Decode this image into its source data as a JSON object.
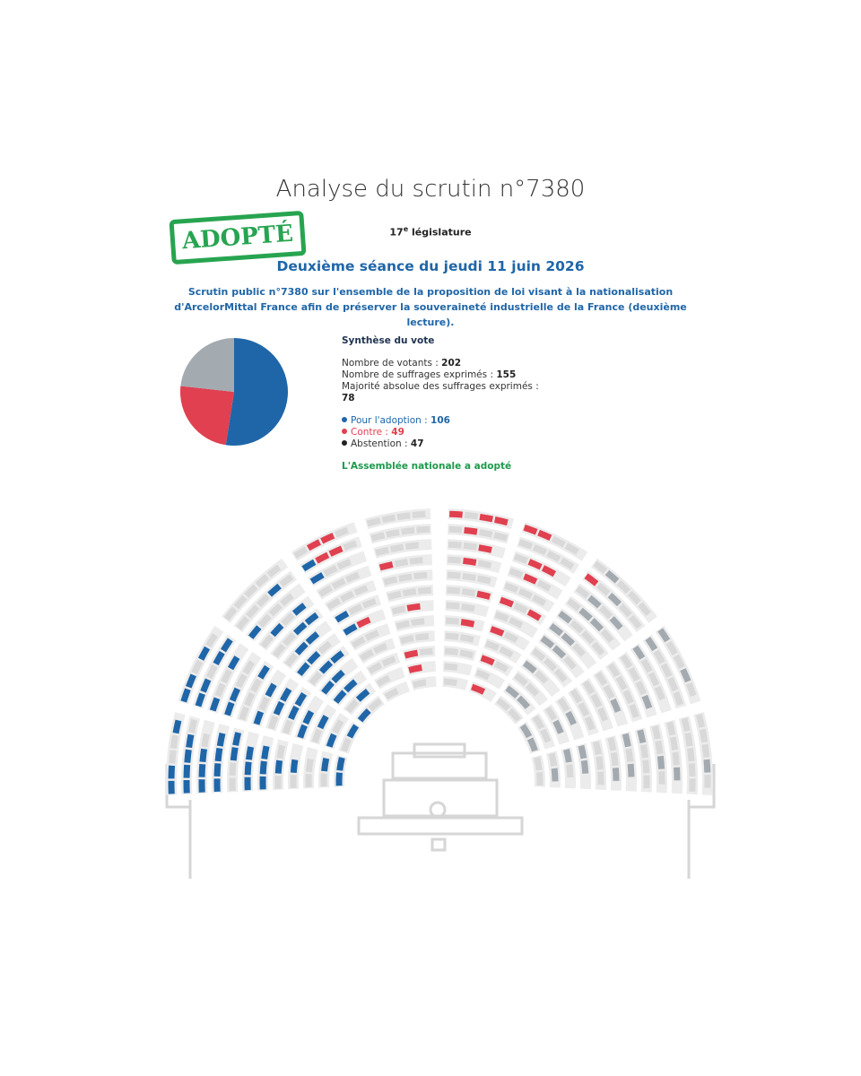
{
  "header": {
    "title": "Analyse du scrutin n°7380",
    "stamp": "ADOPTÉ",
    "legislature_number": "17",
    "legislature_suffix": "e",
    "legislature_label": "législature",
    "session": "Deuxième séance du jeudi 11 juin 2026",
    "description": "Scrutin public n°7380 sur l'ensemble de la proposition de loi visant à la nationalisation d'ArcelorMittal France afin de préserver la souveraineté industrielle de la France (deuxième lecture)."
  },
  "synthesis": {
    "title": "Synthèse du vote",
    "votants": {
      "label": "Nombre de votants :",
      "value": 202
    },
    "exprimes": {
      "label": "Nombre de suffrages exprimés :",
      "value": 155
    },
    "majorite": {
      "label": "Majorité absolue des suffrages exprimés :",
      "value": 78
    },
    "pour": {
      "label": "Pour l'adoption :",
      "value": 106
    },
    "contre": {
      "label": "Contre :",
      "value": 49
    },
    "abstention": {
      "label": "Abstention :",
      "value": 47
    },
    "result": "L'Assemblée nationale a adopté"
  }
}
